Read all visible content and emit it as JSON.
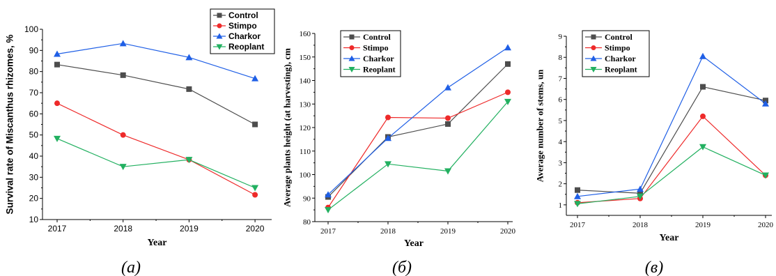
{
  "series_colors": {
    "Control": "#4d4d4d",
    "Stimpo": "#ee2a2a",
    "Charkor": "#1f5fe6",
    "Reoplant": "#22b060"
  },
  "series_markers": {
    "Control": "square",
    "Stimpo": "circle",
    "Charkor": "triangle-up",
    "Reoplant": "triangle-down"
  },
  "chart_data": [
    {
      "type": "line",
      "caption": "(а)",
      "xlabel": "Year",
      "ylabel": "Survival rate of Miscanthus rhizomes, %",
      "categories": [
        "2017",
        "2018",
        "2019",
        "2020"
      ],
      "ylim": [
        10,
        100
      ],
      "yticks": [
        10,
        20,
        30,
        40,
        50,
        60,
        70,
        80,
        90,
        100
      ],
      "legend": "top-right",
      "series": [
        {
          "name": "Control",
          "values": [
            83.3,
            78.3,
            71.7,
            55.0
          ]
        },
        {
          "name": "Stimpo",
          "values": [
            65.0,
            50.0,
            38.3,
            21.7
          ]
        },
        {
          "name": "Charkor",
          "values": [
            88.3,
            93.3,
            86.7,
            76.7
          ]
        },
        {
          "name": "Reoplant",
          "values": [
            48.3,
            35.0,
            38.3,
            25.0
          ]
        }
      ]
    },
    {
      "type": "line",
      "caption": "(б)",
      "xlabel": "Year",
      "ylabel": "Average plants height (at harvesting), cm",
      "categories": [
        "2017",
        "2018",
        "2019",
        "2020"
      ],
      "ylim": [
        80,
        160
      ],
      "yticks": [
        80,
        90,
        100,
        110,
        120,
        130,
        140,
        150,
        160
      ],
      "legend": "top-left",
      "series": [
        {
          "name": "Control",
          "values": [
            90.5,
            116.0,
            121.5,
            147.0
          ]
        },
        {
          "name": "Stimpo",
          "values": [
            86.0,
            124.3,
            124.0,
            135.0
          ]
        },
        {
          "name": "Charkor",
          "values": [
            91.5,
            115.5,
            137.0,
            154.0
          ]
        },
        {
          "name": "Reoplant",
          "values": [
            85.0,
            104.5,
            101.5,
            131.0
          ]
        }
      ]
    },
    {
      "type": "line",
      "caption": "(в)",
      "xlabel": "Year",
      "ylabel": "Average number of stems, un",
      "categories": [
        "2017",
        "2018",
        "2019",
        "2020"
      ],
      "ylim": [
        0.5,
        9
      ],
      "yticks": [
        1,
        2,
        3,
        4,
        5,
        6,
        7,
        8,
        9
      ],
      "legend": "top-left",
      "series": [
        {
          "name": "Control",
          "values": [
            1.7,
            1.55,
            6.6,
            5.95
          ]
        },
        {
          "name": "Stimpo",
          "values": [
            1.1,
            1.3,
            5.2,
            2.4
          ]
        },
        {
          "name": "Charkor",
          "values": [
            1.4,
            1.75,
            8.05,
            5.8
          ]
        },
        {
          "name": "Reoplant",
          "values": [
            1.05,
            1.4,
            3.75,
            2.4
          ]
        }
      ]
    }
  ]
}
